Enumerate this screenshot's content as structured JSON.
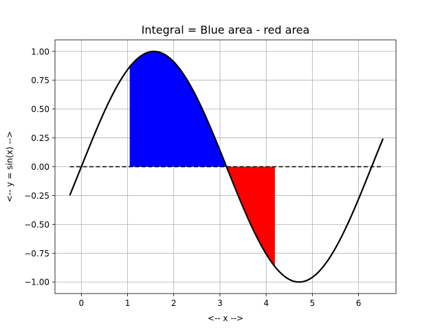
{
  "chart_data": {
    "type": "line",
    "title": "Integral = Blue area - red area",
    "xlabel": "<-- x -->",
    "ylabel": "<-- y = sin(x) -->",
    "xlim": [
      -0.57,
      6.81
    ],
    "ylim": [
      -1.1,
      1.1
    ],
    "grid": true,
    "xticks": [
      0,
      1,
      2,
      3,
      4,
      5,
      6
    ],
    "xtick_labels": [
      "0",
      "1",
      "2",
      "3",
      "4",
      "5",
      "6"
    ],
    "yticks": [
      -1.0,
      -0.75,
      -0.5,
      -0.25,
      0.0,
      0.25,
      0.5,
      0.75,
      1.0
    ],
    "ytick_labels": [
      "−1.00",
      "−0.75",
      "−0.50",
      "−0.25",
      "0.00",
      "0.25",
      "0.50",
      "0.75",
      "1.00"
    ],
    "series": [
      {
        "function": "sin(x)",
        "x_range": [
          -0.25,
          6.53
        ],
        "color": "#000000",
        "style": "solid"
      },
      {
        "function": "0",
        "x_range": [
          -0.25,
          6.53
        ],
        "color": "#000000",
        "style": "dashed"
      }
    ],
    "fills": [
      {
        "x_range": [
          1.047,
          3.1416
        ],
        "color": "#0000ff",
        "sign": "positive"
      },
      {
        "x_range": [
          3.1416,
          4.189
        ],
        "color": "#ff0000",
        "sign": "negative"
      }
    ]
  }
}
